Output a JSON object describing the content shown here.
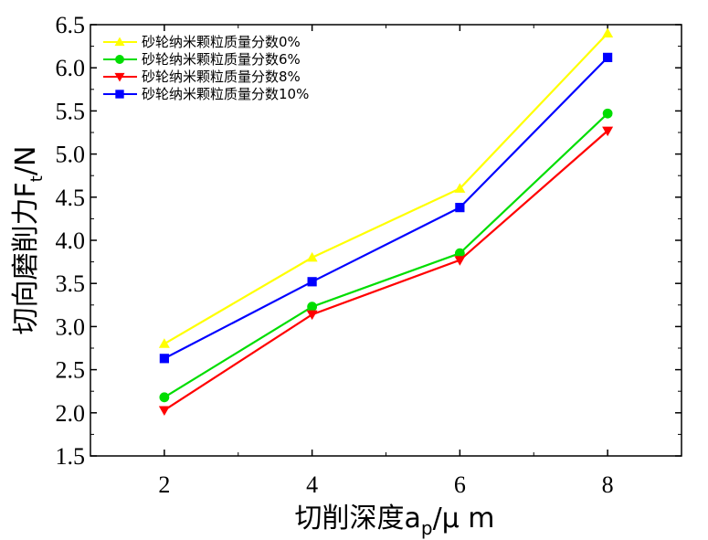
{
  "chart_data": {
    "type": "line",
    "x": [
      2,
      4,
      6,
      8
    ],
    "xlim": [
      1,
      9
    ],
    "ylim": [
      1.5,
      6.5
    ],
    "xticks": [
      "2",
      "4",
      "6",
      "8"
    ],
    "yticks": [
      "1.5",
      "2.0",
      "2.5",
      "3.0",
      "3.5",
      "4.0",
      "4.5",
      "5.0",
      "5.5",
      "6.0",
      "6.5"
    ],
    "xlabel": "切削深度a",
    "xlabel_sub": "p",
    "xlabel_unit": "/μ m",
    "ylabel": "切向磨削力F",
    "ylabel_sub": "t",
    "ylabel_unit": "/N",
    "grid": false,
    "legend_position": "top-left",
    "series": [
      {
        "name": "砂轮纳米颗粒质量分数0%",
        "values": [
          2.8,
          3.8,
          4.6,
          6.4
        ],
        "color": "#ffff00",
        "marker": "triangle-up"
      },
      {
        "name": "砂轮纳米颗粒质量分数6%",
        "values": [
          2.18,
          3.23,
          3.85,
          5.47
        ],
        "color": "#00dd00",
        "marker": "circle"
      },
      {
        "name": "砂轮纳米颗粒质量分数8%",
        "values": [
          2.03,
          3.14,
          3.77,
          5.27
        ],
        "color": "#ff0000",
        "marker": "triangle-down"
      },
      {
        "name": "砂轮纳米颗粒质量分数10%",
        "values": [
          2.63,
          3.52,
          4.38,
          6.12
        ],
        "color": "#0000ff",
        "marker": "square"
      }
    ]
  }
}
